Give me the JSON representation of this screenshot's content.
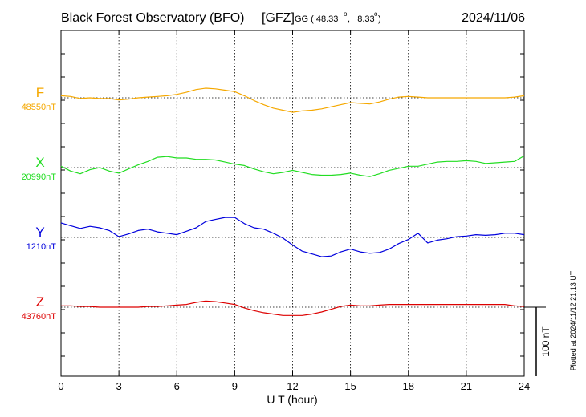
{
  "header": {
    "title": "Black Forest Observatory (BFO)",
    "source": "[GFZ]",
    "coords_prefix": "GG ( 48.33",
    "coords_mid": ",   8.33",
    "coords_suffix": ")",
    "date": "2024/11/06"
  },
  "plotted_note": "Plotted at 2024/11/12 21:13 UT",
  "scale_bar_label": "100 nT",
  "chart_data": {
    "type": "line",
    "title": "Black Forest Observatory (BFO)",
    "xlabel": "U T (hour)",
    "ylabel": "",
    "xlim": [
      0,
      24
    ],
    "x_ticks": [
      0,
      3,
      6,
      9,
      12,
      15,
      18,
      21,
      24
    ],
    "x_tick_labels": [
      "0",
      "3",
      "6",
      "9",
      "12",
      "15",
      "18",
      "21",
      "24"
    ],
    "grid": true,
    "unit": "nT",
    "scale_bar_nT": 100,
    "series": [
      {
        "name": "F",
        "baseline_label": "48550nT",
        "baseline": 48550,
        "color": "#f5a800",
        "x": [
          0,
          0.5,
          1,
          1.5,
          2,
          2.5,
          3,
          3.5,
          4,
          4.5,
          5,
          5.5,
          6,
          6.5,
          7,
          7.5,
          8,
          8.5,
          9,
          9.5,
          10,
          10.5,
          11,
          11.5,
          12,
          12.5,
          13,
          13.5,
          14,
          14.5,
          15,
          15.5,
          16,
          16.5,
          17,
          17.5,
          18,
          18.5,
          19,
          19.5,
          20,
          20.5,
          21,
          21.5,
          22,
          22.5,
          23,
          23.5,
          24
        ],
        "values": [
          48553,
          48552,
          48549,
          48550,
          48549,
          48549,
          48547,
          48548,
          48550,
          48551,
          48552,
          48553,
          48555,
          48558,
          48562,
          48564,
          48563,
          48561,
          48559,
          48553,
          48546,
          48540,
          48535,
          48532,
          48529,
          48531,
          48532,
          48534,
          48537,
          48540,
          48543,
          48542,
          48541,
          48544,
          48548,
          48551,
          48552,
          48551,
          48550,
          48550,
          48550,
          48550,
          48550,
          48550,
          48550,
          48550,
          48550,
          48551,
          48553
        ]
      },
      {
        "name": "X",
        "baseline_label": "20990nT",
        "baseline": 20990,
        "color": "#22dd22",
        "x": [
          0,
          0.5,
          1,
          1.5,
          2,
          2.5,
          3,
          3.5,
          4,
          4.5,
          5,
          5.5,
          6,
          6.5,
          7,
          7.5,
          8,
          8.5,
          9,
          9.5,
          10,
          10.5,
          11,
          11.5,
          12,
          12.5,
          13,
          13.5,
          14,
          14.5,
          15,
          15.5,
          16,
          16.5,
          17,
          17.5,
          18,
          18.5,
          19,
          19.5,
          20,
          20.5,
          21,
          21.5,
          22,
          22.5,
          23,
          23.5,
          24
        ],
        "values": [
          20992,
          20985,
          20981,
          20987,
          20990,
          20985,
          20982,
          20988,
          20994,
          20999,
          21005,
          21006,
          21004,
          21004,
          21002,
          21002,
          21001,
          20998,
          20995,
          20993,
          20988,
          20984,
          20981,
          20983,
          20986,
          20983,
          20980,
          20979,
          20979,
          20980,
          20982,
          20979,
          20977,
          20981,
          20986,
          20989,
          20992,
          20992,
          20995,
          20998,
          20999,
          20999,
          21000,
          20999,
          20996,
          20997,
          20998,
          20999,
          21007
        ]
      },
      {
        "name": "Y",
        "baseline_label": "1210nT",
        "baseline": 1210,
        "color": "#0000dd",
        "x": [
          0,
          0.5,
          1,
          1.5,
          2,
          2.5,
          3,
          3.5,
          4,
          4.5,
          5,
          5.5,
          6,
          6.5,
          7,
          7.5,
          8,
          8.5,
          9,
          9.5,
          10,
          10.5,
          11,
          11.5,
          12,
          12.5,
          13,
          13.5,
          14,
          14.5,
          15,
          15.5,
          16,
          16.5,
          17,
          17.5,
          18,
          18.5,
          19,
          19.5,
          20,
          20.5,
          21,
          21.5,
          22,
          22.5,
          23,
          23.5,
          24
        ],
        "values": [
          1231,
          1227,
          1223,
          1226,
          1224,
          1220,
          1211,
          1215,
          1220,
          1222,
          1218,
          1216,
          1214,
          1219,
          1224,
          1233,
          1236,
          1239,
          1239,
          1230,
          1224,
          1222,
          1216,
          1209,
          1199,
          1190,
          1186,
          1182,
          1183,
          1189,
          1193,
          1189,
          1187,
          1188,
          1193,
          1201,
          1207,
          1216,
          1202,
          1206,
          1208,
          1211,
          1212,
          1214,
          1213,
          1214,
          1216,
          1216,
          1214
        ]
      },
      {
        "name": "Z",
        "baseline_label": "43760nT",
        "baseline": 43760,
        "color": "#dd0000",
        "x": [
          0,
          0.5,
          1,
          1.5,
          2,
          2.5,
          3,
          3.5,
          4,
          4.5,
          5,
          5.5,
          6,
          6.5,
          7,
          7.5,
          8,
          8.5,
          9,
          9.5,
          10,
          10.5,
          11,
          11.5,
          12,
          12.5,
          13,
          13.5,
          14,
          14.5,
          15,
          15.5,
          16,
          16.5,
          17,
          17.5,
          18,
          18.5,
          19,
          19.5,
          20,
          20.5,
          21,
          21.5,
          22,
          22.5,
          23,
          23.5,
          24
        ],
        "values": [
          43762,
          43762,
          43761,
          43761,
          43760,
          43760,
          43760,
          43760,
          43760,
          43761,
          43761,
          43762,
          43763,
          43764,
          43767,
          43769,
          43768,
          43766,
          43764,
          43759,
          43755,
          43752,
          43750,
          43748,
          43748,
          43748,
          43750,
          43753,
          43757,
          43761,
          43763,
          43762,
          43762,
          43763,
          43764,
          43764,
          43764,
          43764,
          43764,
          43764,
          43764,
          43764,
          43764,
          43764,
          43764,
          43764,
          43764,
          43762,
          43761
        ]
      }
    ]
  }
}
